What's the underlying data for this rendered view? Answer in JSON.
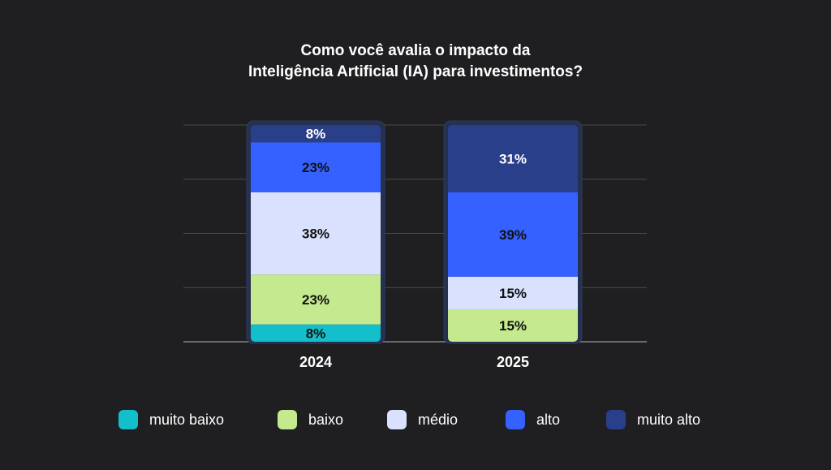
{
  "title_line1": "Como você avalia o impacto da",
  "title_line2": "Inteligência Artificial (IA) para investimentos?",
  "colors": {
    "muito_baixo": "#12bfcb",
    "baixo": "#c5e98f",
    "medio": "#d9e1ff",
    "alto": "#3461ff",
    "muito_alto": "#2a3f8a"
  },
  "legend": [
    {
      "key": "muito_baixo",
      "label": "muito baixo"
    },
    {
      "key": "baixo",
      "label": "baixo"
    },
    {
      "key": "medio",
      "label": "médio"
    },
    {
      "key": "alto",
      "label": "alto"
    },
    {
      "key": "muito_alto",
      "label": "muito alto"
    }
  ],
  "chart_data": {
    "type": "bar",
    "stacked": true,
    "categories": [
      "2024",
      "2025"
    ],
    "series": [
      {
        "name": "muito baixo",
        "color": "#12bfcb",
        "values": [
          8,
          0
        ],
        "labels": [
          "8%",
          ""
        ]
      },
      {
        "name": "baixo",
        "color": "#c5e98f",
        "values": [
          23,
          15
        ],
        "labels": [
          "23%",
          "15%"
        ]
      },
      {
        "name": "médio",
        "color": "#d9e1ff",
        "values": [
          38,
          15
        ],
        "labels": [
          "38%",
          "15%"
        ]
      },
      {
        "name": "alto",
        "color": "#3461ff",
        "values": [
          23,
          39
        ],
        "labels": [
          "23%",
          "39%"
        ]
      },
      {
        "name": "muito alto",
        "color": "#2a3f8a",
        "values": [
          8,
          31
        ],
        "labels": [
          "8%",
          "31%"
        ]
      }
    ],
    "ylim": [
      0,
      100
    ],
    "grid": true,
    "legend_position": "bottom"
  }
}
